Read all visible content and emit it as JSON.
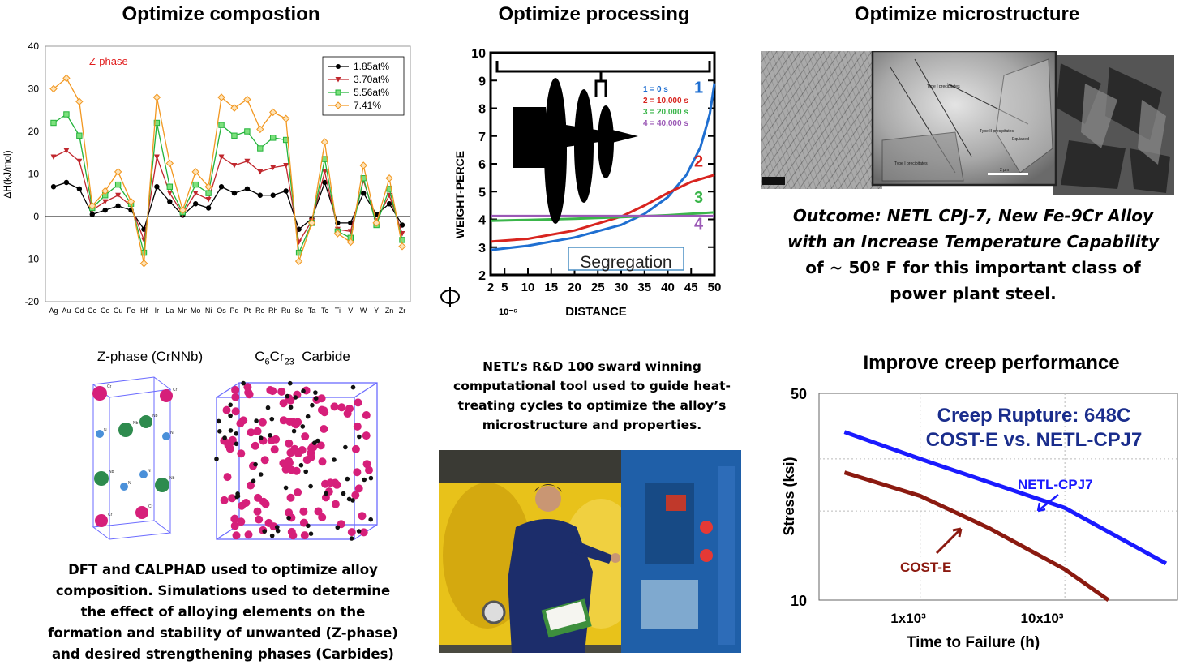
{
  "headings": {
    "composition": "Optimize compostion",
    "processing": "Optimize processing",
    "microstructure": "Optimize microstructure",
    "creep": "Improve creep performance"
  },
  "chart_data": [
    {
      "type": "line",
      "title": "",
      "annotation": "Z-phase",
      "ylabel": "ΔH(kJ/mol)",
      "xlabel": "",
      "ylim": [
        -20,
        40
      ],
      "yticks": [
        -20,
        -10,
        0,
        10,
        20,
        30,
        40
      ],
      "categories": [
        "Ag",
        "Au",
        "Cd",
        "Ce",
        "Co",
        "Cu",
        "Fe",
        "Hf",
        "Ir",
        "La",
        "Mn",
        "Mo",
        "Ni",
        "Os",
        "Pd",
        "Pt",
        "Re",
        "Rh",
        "Ru",
        "Sc",
        "Ta",
        "Tc",
        "Ti",
        "V",
        "W",
        "Y",
        "Zn",
        "Zr"
      ],
      "legend_position": "top-right",
      "series": [
        {
          "name": "1.85at%",
          "color": "#000000",
          "values": [
            7,
            8,
            6.5,
            0.5,
            1.5,
            2.5,
            1.5,
            -3,
            7,
            3.5,
            0.3,
            3,
            2,
            7,
            5.5,
            6.5,
            5,
            5,
            6,
            -3,
            -0.5,
            8,
            -1.5,
            -1.5,
            5.5,
            0.5,
            3,
            -2
          ]
        },
        {
          "name": "3.70at%",
          "color": "#c0272d",
          "values": [
            14,
            15.5,
            13,
            1.5,
            3.5,
            5,
            2.5,
            -5.5,
            14,
            5.5,
            0.6,
            5.5,
            4,
            14,
            12,
            13,
            10.5,
            11.5,
            12,
            -6,
            -1,
            10.5,
            -3,
            -3.5,
            8.5,
            -1,
            5,
            -4
          ]
        },
        {
          "name": "5.56at%",
          "color": "#23b33a",
          "values": [
            22,
            24,
            19,
            2,
            5,
            7.5,
            3,
            -8.5,
            22,
            7,
            1,
            7.5,
            5.5,
            21.5,
            19,
            20,
            16,
            18.5,
            18,
            -8.5,
            -1.5,
            13.5,
            -3.5,
            -5,
            9,
            -2,
            6.5,
            -5.5
          ]
        },
        {
          "name": "7.41%",
          "color": "#f29720",
          "values": [
            30,
            32.5,
            27,
            2.5,
            6,
            10.5,
            3.5,
            -11,
            28,
            12.5,
            1.5,
            10.5,
            7,
            28,
            25.5,
            27.5,
            20.5,
            24.5,
            23,
            -10.5,
            -1.5,
            17.5,
            -4,
            -6,
            12,
            -1.5,
            9,
            -7
          ]
        }
      ]
    },
    {
      "type": "line",
      "title": "",
      "ylabel": "WEIGHT-PERCE",
      "xlabel": "DISTANCE",
      "xunit": "10⁻⁶",
      "xlim": [
        2,
        50
      ],
      "ylim": [
        2,
        10
      ],
      "xticks": [
        2,
        5,
        10,
        15,
        20,
        25,
        30,
        35,
        40,
        45,
        50
      ],
      "yticks": [
        2,
        3,
        4,
        5,
        6,
        7,
        8,
        9,
        10
      ],
      "annotation": "Segregation",
      "legend_title_lines": [
        "1 = 0 s",
        "2 = 10,000 s",
        "3 = 20,000 s",
        "4 = 40,000 s"
      ],
      "series": [
        {
          "name": "1",
          "color": "#1f6fd1",
          "x": [
            2,
            10,
            20,
            30,
            35,
            40,
            44,
            47,
            49,
            50
          ],
          "y": [
            2.9,
            3.05,
            3.35,
            3.8,
            4.2,
            4.8,
            5.6,
            6.6,
            7.8,
            8.9
          ]
        },
        {
          "name": "2",
          "color": "#d8241f",
          "x": [
            2,
            10,
            20,
            30,
            35,
            40,
            45,
            50
          ],
          "y": [
            3.2,
            3.3,
            3.6,
            4.1,
            4.5,
            4.95,
            5.35,
            5.6
          ]
        },
        {
          "name": "3",
          "color": "#3ab54a",
          "x": [
            2,
            10,
            20,
            30,
            40,
            50
          ],
          "y": [
            3.95,
            3.98,
            4.02,
            4.08,
            4.15,
            4.25
          ]
        },
        {
          "name": "4",
          "color": "#9b59b6",
          "x": [
            2,
            50
          ],
          "y": [
            4.12,
            4.12
          ]
        }
      ]
    },
    {
      "type": "line",
      "title_lines": [
        "Creep Rupture: 648C",
        "COST-E vs. NETL-CPJ7"
      ],
      "ylabel": "Stress (ksi)",
      "xlabel": "Time to Failure (h)",
      "xscale": "log",
      "yscale": "log",
      "ytick_labels": [
        "50",
        "10"
      ],
      "xtick_labels": [
        "1x10³",
        "10x10³"
      ],
      "series": [
        {
          "name": "NETL-CPJ7",
          "color": "#1a1aff",
          "x": [
            300,
            1000,
            10000,
            50000
          ],
          "y": [
            37,
            30,
            20.5,
            13.3
          ]
        },
        {
          "name": "COST-E",
          "color": "#8b1a10",
          "x": [
            300,
            1000,
            3000,
            10000,
            20000
          ],
          "y": [
            27,
            22.5,
            17.5,
            12.7,
            10
          ]
        }
      ]
    }
  ],
  "micro_texts": {
    "label_a": "Type I precipitates",
    "label_b": "Type II precipitates",
    "label_c": "Equiaxed",
    "label_d": "Type I precipitates",
    "scale": "2 μm"
  },
  "outcome": [
    "Outcome:  NETL CPJ-7, New Fe-9Cr Alloy",
    "with an Increase Temperature Capability",
    "of ~ 50º F  for this important  class of",
    "power plant steel."
  ],
  "crystal": {
    "z_title": "Z-phase (CrNNb)",
    "carbide_title_parts": [
      "C",
      "6",
      "Cr",
      "23",
      "  Carbide"
    ],
    "atom_labels": {
      "cr": "Cr",
      "nb": "Nb",
      "n": "N"
    }
  },
  "dft_caption": [
    "DFT  and CALPHAD used to optimize alloy",
    "composition. Simulations used to determine",
    "the effect of alloying elements on the",
    "formation and stability  of unwanted (Z-phase)",
    "and desired strengthening phases (Carbides)"
  ],
  "netl_caption": [
    "NETL’s R&D 100 sward winning",
    "computational  tool  used to guide heat-",
    "treating cycles to optimize the alloy’s",
    "microstructure and properties."
  ],
  "colors": {
    "chromium_atom": "#d61f7a",
    "niobium_atom": "#2e8b4e",
    "nitrogen_atom": "#4a90d9",
    "carbon_atom": "#111111",
    "cell_edges": "#5b5bff",
    "photo_panel_blue": "#1f5fa8",
    "photo_yellow": "#e8c21a"
  }
}
